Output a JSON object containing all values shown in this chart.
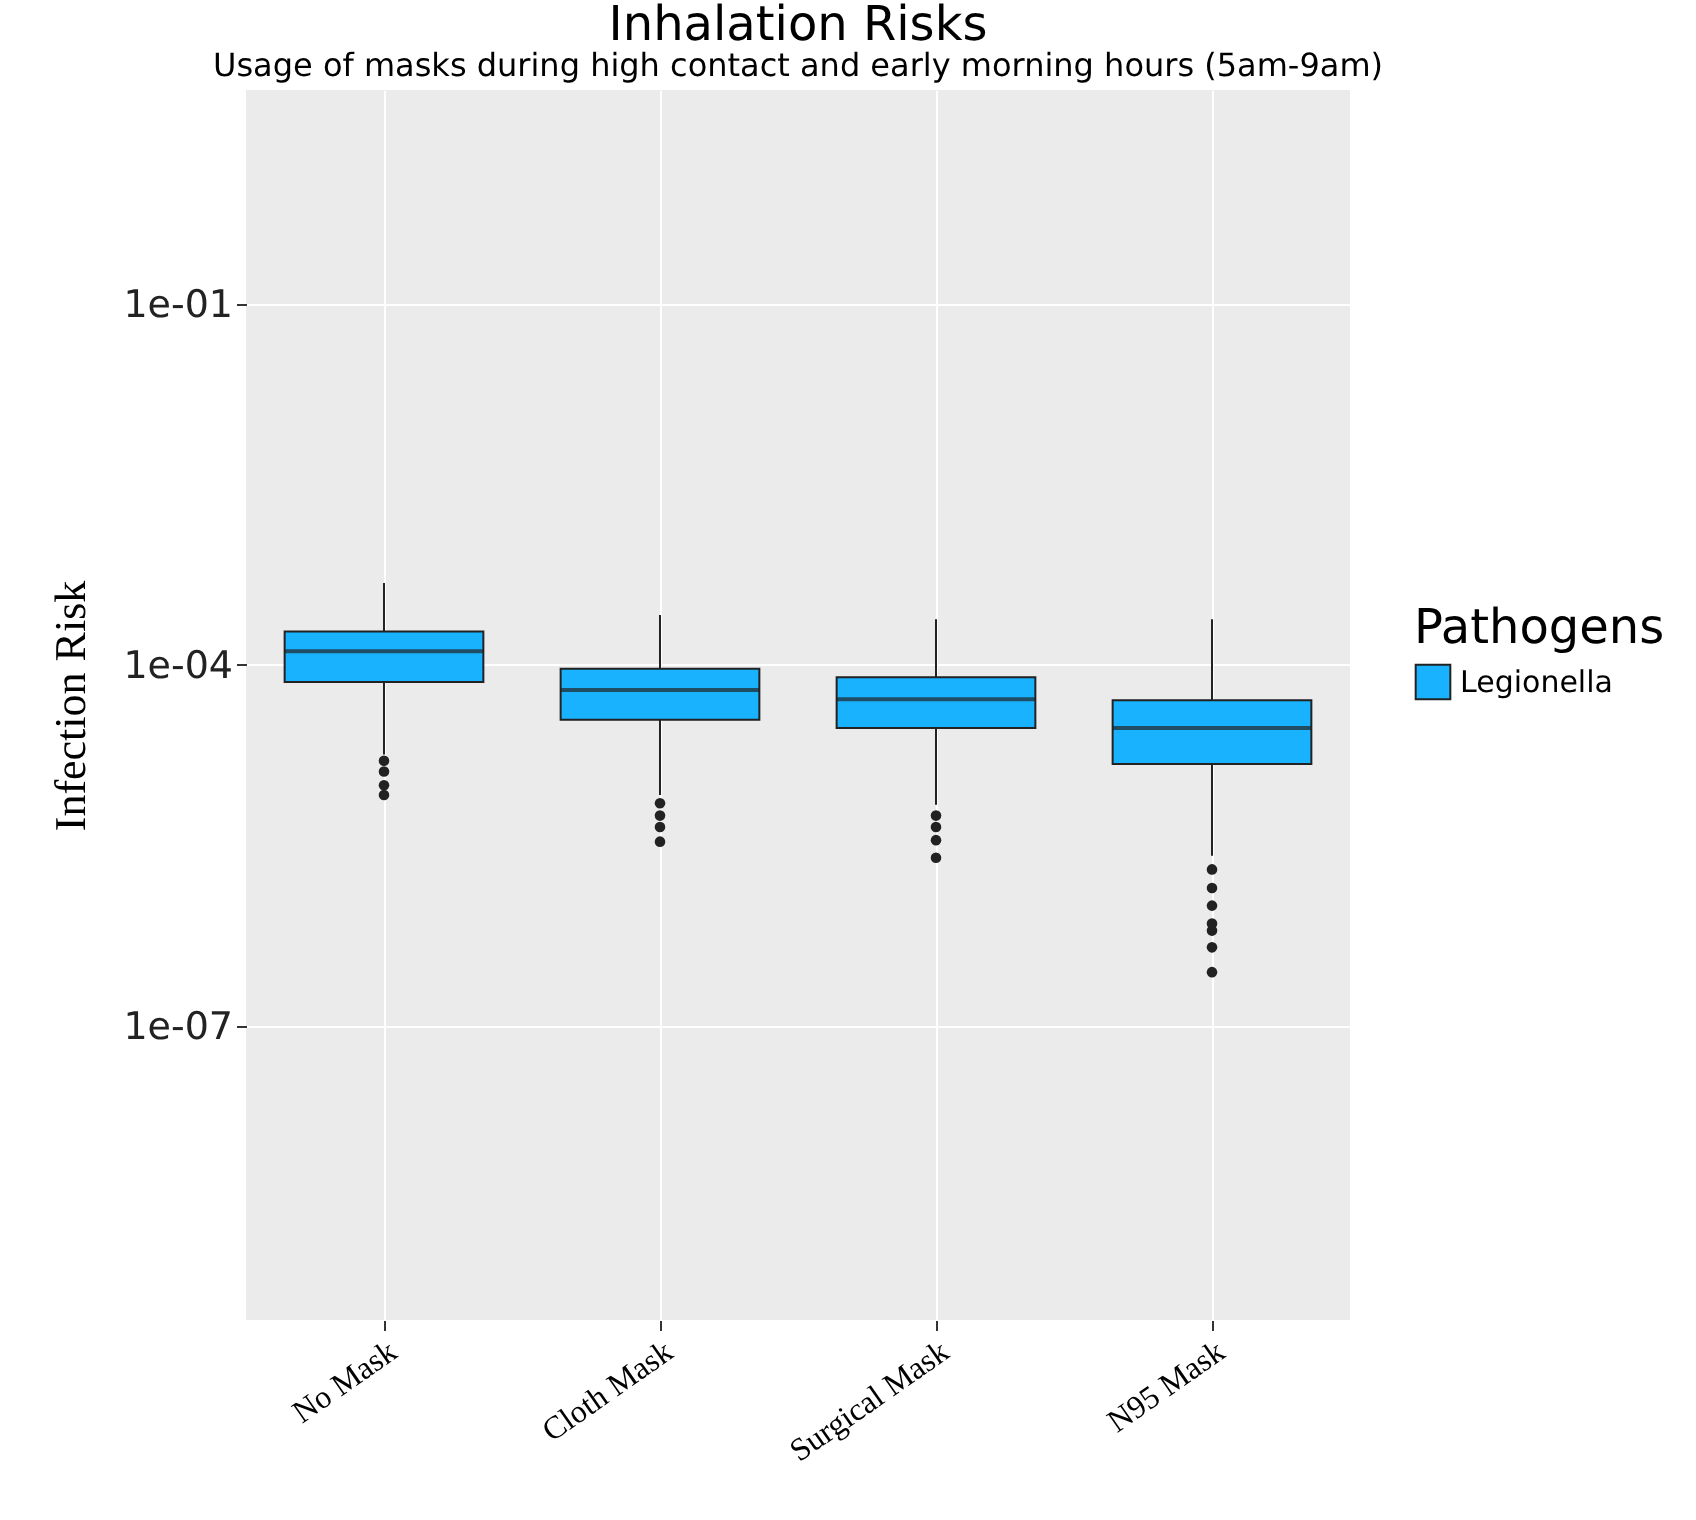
{
  "chart_data": {
    "type": "box",
    "title": "Inhalation Risks",
    "subtitle": "Usage of masks during high contact and early morning hours (5am-9am)",
    "ylabel": "Infection Risk",
    "legend_title": "Pathogens",
    "legend": "right",
    "grid": true,
    "log": "y",
    "categories": [
      "No Mask",
      "Cloth Mask",
      "Surgical Mask",
      "N95 Mask"
    ],
    "ylim": [
      3.6e-10,
      6
    ],
    "yticks": [
      {
        "value": 0.1,
        "label": "1e-01"
      },
      {
        "value": 0.0001,
        "label": "1e-04"
      },
      {
        "value": 1e-07,
        "label": "1e-07"
      }
    ],
    "series": [
      {
        "name": "Legionella",
        "color": "#19b2ff",
        "boxes": [
          {
            "low": 1.8e-05,
            "q1": 7.2e-05,
            "median": 0.00013,
            "q3": 0.00019,
            "high": 0.00048,
            "outliers": [
              1.6e-05,
              1.3e-05,
              1e-05,
              8.3e-06
            ]
          },
          {
            "low": 8.3e-06,
            "q1": 3.5e-05,
            "median": 6.2e-05,
            "q3": 9.3e-05,
            "high": 0.00026,
            "outliers": [
              7.1e-06,
              5.6e-06,
              4.5e-06,
              3.4e-06
            ]
          },
          {
            "low": 6.9e-06,
            "q1": 3e-05,
            "median": 5.2e-05,
            "q3": 7.9e-05,
            "high": 0.00024,
            "outliers": [
              5.6e-06,
              4.5e-06,
              3.5e-06,
              2.5e-06
            ]
          },
          {
            "low": 2.6e-06,
            "q1": 1.5e-05,
            "median": 3e-05,
            "q3": 5.1e-05,
            "high": 0.00024,
            "outliers": [
              2e-06,
              1.4e-06,
              1e-06,
              7.1e-07,
              6.2e-07,
              4.5e-07,
              2.8e-07
            ]
          }
        ]
      }
    ]
  }
}
